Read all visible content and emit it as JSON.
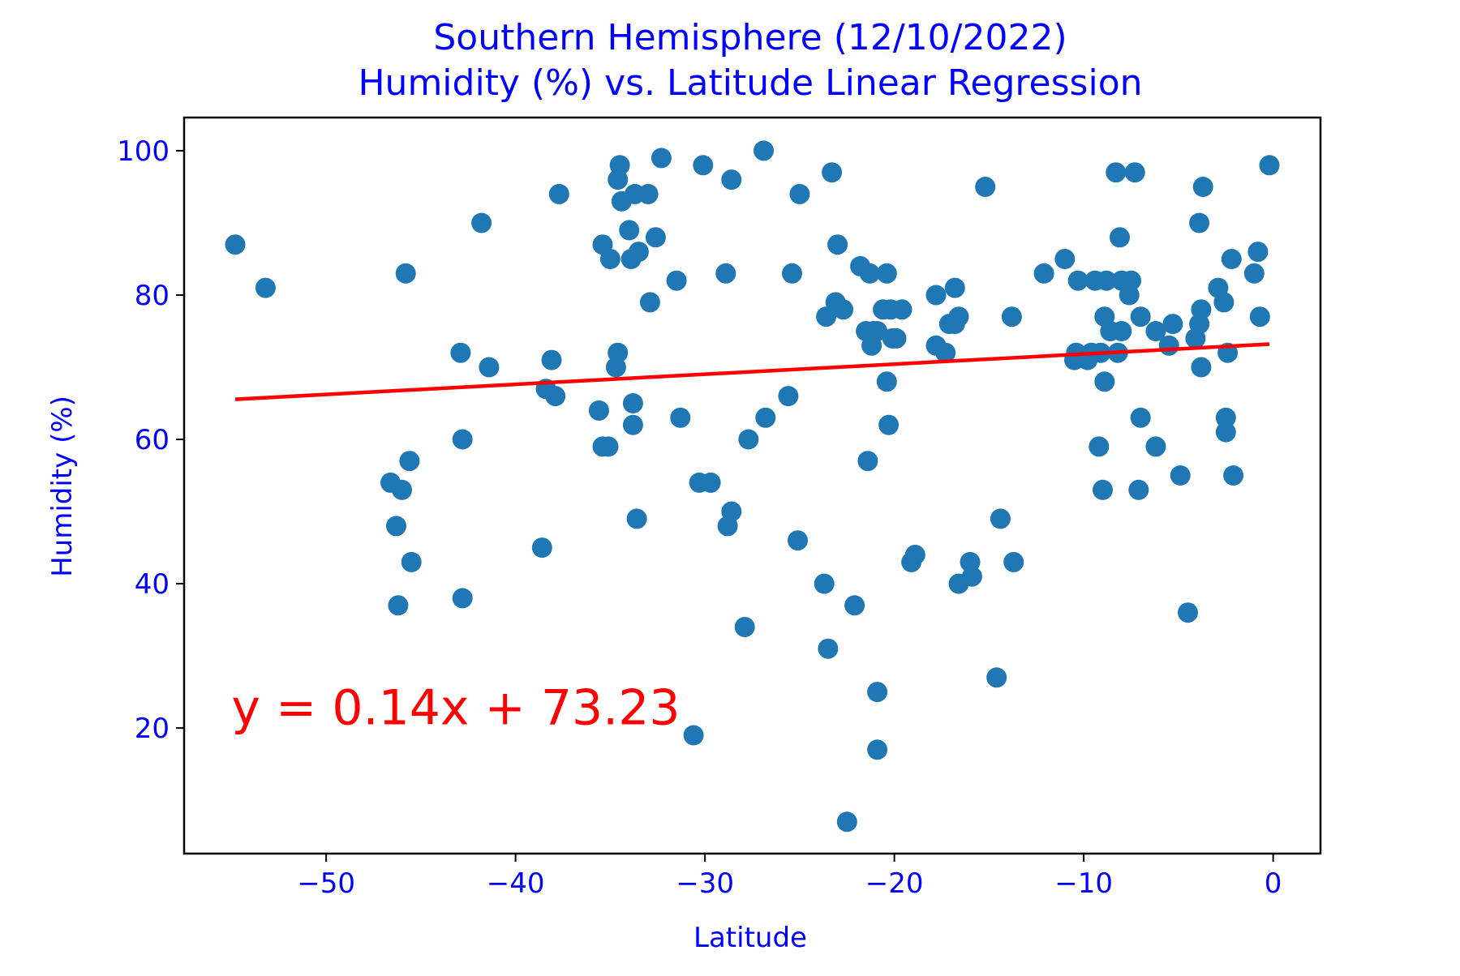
{
  "chart_data": {
    "type": "scatter",
    "title_line1": "Southern Hemisphere (12/10/2022)",
    "title_line2": "Humidity (%) vs. Latitude Linear Regression",
    "xlabel": "Latitude",
    "ylabel": "Humidity (%)",
    "xlim": [
      -57.5,
      2.5
    ],
    "ylim": [
      2.6,
      104.6
    ],
    "xticks": [
      -50,
      -40,
      -30,
      -20,
      -10,
      0
    ],
    "xtick_labels": [
      "−50",
      "−40",
      "−30",
      "−20",
      "−10",
      "0"
    ],
    "yticks": [
      20,
      40,
      60,
      80,
      100
    ],
    "ytick_labels": [
      "20",
      "40",
      "60",
      "80",
      "100"
    ],
    "grid": false,
    "point_color": "#1f77b4",
    "text_color": "#0000ff",
    "regression": {
      "color": "#ff0000",
      "slope": 0.14,
      "intercept": 73.23,
      "x_range": [
        -54.8,
        -0.2
      ],
      "equation_label": "y = 0.14x + 73.23",
      "label_at": [
        -55.0,
        20.5
      ]
    },
    "points": [
      [
        -54.8,
        87
      ],
      [
        -53.2,
        81
      ],
      [
        -46.6,
        54
      ],
      [
        -46.3,
        48
      ],
      [
        -46.2,
        37
      ],
      [
        -46.0,
        53
      ],
      [
        -45.8,
        83
      ],
      [
        -45.6,
        57
      ],
      [
        -45.5,
        43
      ],
      [
        -42.9,
        72
      ],
      [
        -42.8,
        60
      ],
      [
        -42.8,
        38
      ],
      [
        -41.8,
        90
      ],
      [
        -41.4,
        70
      ],
      [
        -38.6,
        45
      ],
      [
        -38.4,
        67
      ],
      [
        -38.1,
        71
      ],
      [
        -37.9,
        66
      ],
      [
        -37.7,
        94
      ],
      [
        -35.6,
        64
      ],
      [
        -35.4,
        87
      ],
      [
        -35.4,
        59
      ],
      [
        -35.1,
        59
      ],
      [
        -35.0,
        85
      ],
      [
        -34.7,
        70
      ],
      [
        -34.6,
        72
      ],
      [
        -34.6,
        96
      ],
      [
        -34.5,
        98
      ],
      [
        -34.4,
        93
      ],
      [
        -34.0,
        89
      ],
      [
        -33.9,
        85
      ],
      [
        -33.8,
        65
      ],
      [
        -33.8,
        62
      ],
      [
        -33.7,
        94
      ],
      [
        -33.6,
        49
      ],
      [
        -33.5,
        86
      ],
      [
        -33.0,
        94
      ],
      [
        -32.9,
        79
      ],
      [
        -32.6,
        88
      ],
      [
        -32.3,
        99
      ],
      [
        -31.5,
        82
      ],
      [
        -31.3,
        63
      ],
      [
        -30.6,
        19
      ],
      [
        -30.3,
        54
      ],
      [
        -30.1,
        98
      ],
      [
        -29.7,
        54
      ],
      [
        -28.9,
        83
      ],
      [
        -28.8,
        48
      ],
      [
        -28.6,
        50
      ],
      [
        -28.6,
        96
      ],
      [
        -27.9,
        34
      ],
      [
        -27.7,
        60
      ],
      [
        -26.9,
        100
      ],
      [
        -26.8,
        63
      ],
      [
        -25.6,
        66
      ],
      [
        -25.4,
        83
      ],
      [
        -25.1,
        46
      ],
      [
        -25.0,
        94
      ],
      [
        -23.7,
        40
      ],
      [
        -23.6,
        77
      ],
      [
        -23.5,
        31
      ],
      [
        -23.3,
        97
      ],
      [
        -23.1,
        79
      ],
      [
        -23.0,
        87
      ],
      [
        -22.7,
        78
      ],
      [
        -22.5,
        7
      ],
      [
        -22.1,
        37
      ],
      [
        -21.8,
        84
      ],
      [
        -21.5,
        75
      ],
      [
        -21.4,
        57
      ],
      [
        -21.3,
        83
      ],
      [
        -21.2,
        73
      ],
      [
        -21.1,
        75
      ],
      [
        -20.9,
        75
      ],
      [
        -20.9,
        25
      ],
      [
        -20.9,
        17
      ],
      [
        -20.6,
        78
      ],
      [
        -20.4,
        68
      ],
      [
        -20.4,
        83
      ],
      [
        -20.3,
        62
      ],
      [
        -20.2,
        78
      ],
      [
        -20.1,
        74
      ],
      [
        -19.9,
        74
      ],
      [
        -19.6,
        78
      ],
      [
        -19.1,
        43
      ],
      [
        -18.9,
        44
      ],
      [
        -17.8,
        80
      ],
      [
        -17.8,
        73
      ],
      [
        -17.3,
        72
      ],
      [
        -17.1,
        76
      ],
      [
        -16.8,
        81
      ],
      [
        -16.8,
        76
      ],
      [
        -16.6,
        77
      ],
      [
        -16.6,
        40
      ],
      [
        -16.0,
        43
      ],
      [
        -15.9,
        41
      ],
      [
        -15.2,
        95
      ],
      [
        -14.6,
        27
      ],
      [
        -14.4,
        49
      ],
      [
        -13.8,
        77
      ],
      [
        -13.7,
        43
      ],
      [
        -12.1,
        83
      ],
      [
        -11.0,
        85
      ],
      [
        -10.5,
        71
      ],
      [
        -10.4,
        72
      ],
      [
        -10.3,
        82
      ],
      [
        -9.8,
        71
      ],
      [
        -9.6,
        72
      ],
      [
        -9.4,
        82
      ],
      [
        -9.2,
        59
      ],
      [
        -9.1,
        72
      ],
      [
        -9.0,
        53
      ],
      [
        -8.9,
        77
      ],
      [
        -8.9,
        68
      ],
      [
        -8.8,
        82
      ],
      [
        -8.6,
        75
      ],
      [
        -8.3,
        97
      ],
      [
        -8.2,
        72
      ],
      [
        -8.1,
        88
      ],
      [
        -8.0,
        82
      ],
      [
        -8.0,
        75
      ],
      [
        -7.6,
        80
      ],
      [
        -7.5,
        82
      ],
      [
        -7.3,
        97
      ],
      [
        -7.1,
        53
      ],
      [
        -7.0,
        77
      ],
      [
        -7.0,
        63
      ],
      [
        -6.2,
        75
      ],
      [
        -6.2,
        59
      ],
      [
        -5.5,
        73
      ],
      [
        -5.3,
        76
      ],
      [
        -4.9,
        55
      ],
      [
        -4.5,
        36
      ],
      [
        -4.1,
        74
      ],
      [
        -3.9,
        90
      ],
      [
        -3.9,
        76
      ],
      [
        -3.8,
        70
      ],
      [
        -3.8,
        78
      ],
      [
        -3.7,
        95
      ],
      [
        -2.9,
        81
      ],
      [
        -2.6,
        79
      ],
      [
        -2.5,
        61
      ],
      [
        -2.5,
        63
      ],
      [
        -2.4,
        72
      ],
      [
        -2.2,
        85
      ],
      [
        -2.1,
        55
      ],
      [
        -1.0,
        83
      ],
      [
        -0.8,
        86
      ],
      [
        -0.7,
        77
      ],
      [
        -0.2,
        98
      ]
    ]
  }
}
